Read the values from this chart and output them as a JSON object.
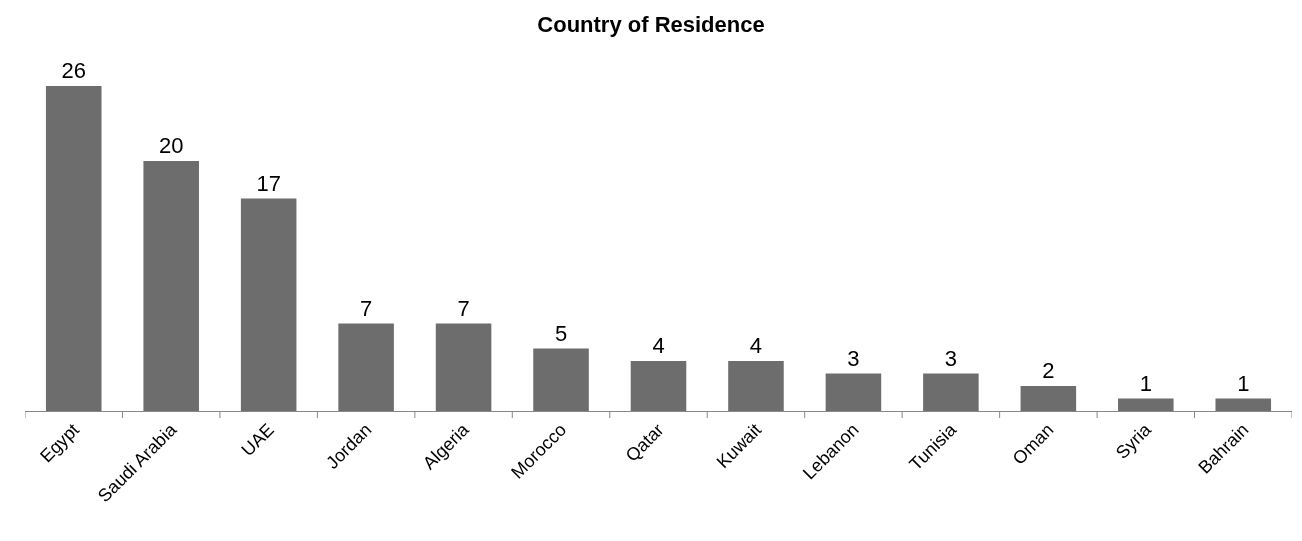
{
  "chart_data": {
    "type": "bar",
    "title": "Country of Residence",
    "categories": [
      "Egypt",
      "Saudi Arabia",
      "UAE",
      "Jordan",
      "Algeria",
      "Morocco",
      "Qatar",
      "Kuwait",
      "Lebanon",
      "Tunisia",
      "Oman",
      "Syria",
      "Bahrain"
    ],
    "values": [
      26,
      20,
      17,
      7,
      7,
      5,
      4,
      4,
      3,
      3,
      2,
      1,
      1
    ],
    "color": "#6d6d6e",
    "data_labels": true
  }
}
